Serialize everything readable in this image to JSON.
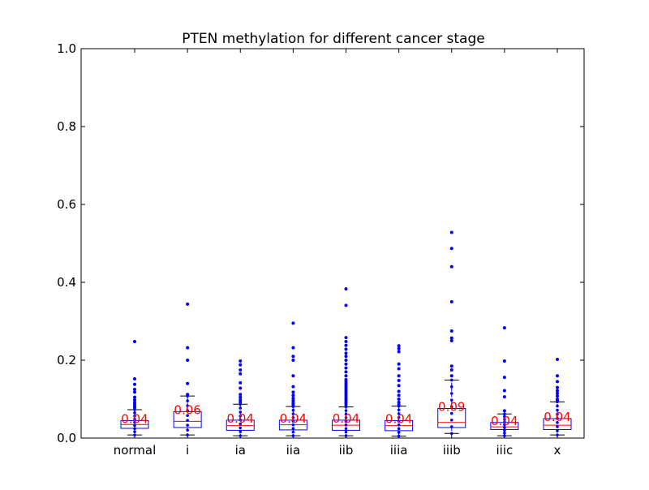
{
  "chart_data": {
    "type": "box",
    "title": "PTEN methylation for different cancer stage",
    "xlabel": "",
    "ylabel": "",
    "ylim": [
      0,
      1.0
    ],
    "yticks": [
      "0.0",
      "0.2",
      "0.4",
      "0.6",
      "0.8",
      "1.0"
    ],
    "grid": false,
    "categories": [
      "normal",
      "i",
      "ia",
      "iia",
      "iib",
      "iiia",
      "iiib",
      "iiic",
      "x"
    ],
    "colors": {
      "box": "#0000ff",
      "median": "#ff0000",
      "whisker_cap": "#000000",
      "outlier": "#0000ff",
      "label": "#ff0000"
    },
    "boxes": [
      {
        "category": "normal",
        "q1": 0.025,
        "median": 0.035,
        "q3": 0.045,
        "whisker_low": 0.008,
        "whisker_high": 0.073,
        "label": "0.04",
        "outliers": [
          0.248,
          0.152,
          0.138,
          0.125,
          0.118,
          0.105,
          0.098,
          0.092,
          0.087,
          0.082,
          0.078
        ]
      },
      {
        "category": "i",
        "q1": 0.027,
        "median": 0.043,
        "q3": 0.068,
        "whisker_low": 0.008,
        "whisker_high": 0.108,
        "label": "0.06",
        "outliers": [
          0.344,
          0.232,
          0.2,
          0.14,
          0.112
        ]
      },
      {
        "category": "ia",
        "q1": 0.02,
        "median": 0.032,
        "q3": 0.046,
        "whisker_low": 0.006,
        "whisker_high": 0.087,
        "label": "0.04",
        "outliers": [
          0.198,
          0.188,
          0.175,
          0.165,
          0.142,
          0.128,
          0.112,
          0.105,
          0.098,
          0.092
        ]
      },
      {
        "category": "iia",
        "q1": 0.021,
        "median": 0.034,
        "q3": 0.046,
        "whisker_low": 0.006,
        "whisker_high": 0.081,
        "label": "0.04",
        "outliers": [
          0.295,
          0.232,
          0.21,
          0.2,
          0.16,
          0.132,
          0.118,
          0.11,
          0.102,
          0.096,
          0.09,
          0.085
        ]
      },
      {
        "category": "iib",
        "q1": 0.02,
        "median": 0.033,
        "q3": 0.046,
        "whisker_low": 0.006,
        "whisker_high": 0.08,
        "label": "0.04",
        "outliers": [
          0.383,
          0.341,
          0.258,
          0.248,
          0.238,
          0.228,
          0.218,
          0.21,
          0.2,
          0.19,
          0.18,
          0.17,
          0.16,
          0.15,
          0.145,
          0.14,
          0.135,
          0.13,
          0.125,
          0.12,
          0.115,
          0.11,
          0.105,
          0.1,
          0.095,
          0.09,
          0.085
        ]
      },
      {
        "category": "iiia",
        "q1": 0.019,
        "median": 0.032,
        "q3": 0.045,
        "whisker_low": 0.005,
        "whisker_high": 0.082,
        "label": "0.04",
        "outliers": [
          0.237,
          0.23,
          0.222,
          0.19,
          0.178,
          0.16,
          0.148,
          0.135,
          0.12,
          0.11,
          0.1,
          0.092,
          0.086
        ]
      },
      {
        "category": "iiib",
        "q1": 0.027,
        "median": 0.04,
        "q3": 0.076,
        "whisker_low": 0.012,
        "whisker_high": 0.149,
        "label": "0.09",
        "outliers": [
          0.528,
          0.487,
          0.44,
          0.35,
          0.275,
          0.257,
          0.25,
          0.185,
          0.175,
          0.16
        ]
      },
      {
        "category": "iiic",
        "q1": 0.022,
        "median": 0.029,
        "q3": 0.04,
        "whisker_low": 0.006,
        "whisker_high": 0.062,
        "label": "0.04",
        "outliers": [
          0.283,
          0.198,
          0.156,
          0.122,
          0.106,
          0.07
        ]
      },
      {
        "category": "x",
        "q1": 0.022,
        "median": 0.033,
        "q3": 0.05,
        "whisker_low": 0.008,
        "whisker_high": 0.093,
        "label": "0.04",
        "outliers": [
          0.202,
          0.16,
          0.145,
          0.13,
          0.122,
          0.115,
          0.108,
          0.1,
          0.096
        ]
      }
    ]
  }
}
